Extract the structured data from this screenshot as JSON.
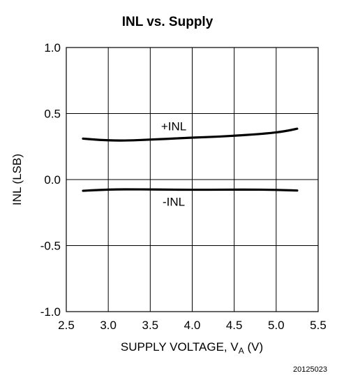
{
  "chart_data": {
    "type": "line",
    "title": "INL vs. Supply",
    "xlabel_main": "SUPPLY VOLTAGE, V",
    "xlabel_sub": "A",
    "xlabel_tail": " (V)",
    "ylabel": "INL (LSB)",
    "xlim": [
      2.5,
      5.5
    ],
    "ylim": [
      -1.0,
      1.0
    ],
    "x_ticks": [
      "2.5",
      "3.0",
      "3.5",
      "4.0",
      "4.5",
      "5.0",
      "5.5"
    ],
    "y_ticks": [
      "1.0",
      "0.5",
      "0.0",
      "-0.5",
      "-1.0"
    ],
    "grid": true,
    "series": [
      {
        "name": "+INL",
        "x": [
          2.7,
          2.9,
          3.1,
          3.3,
          3.5,
          3.7,
          3.9,
          4.1,
          4.3,
          4.5,
          4.7,
          4.9,
          5.1,
          5.25
        ],
        "y": [
          0.31,
          0.3,
          0.295,
          0.297,
          0.303,
          0.308,
          0.315,
          0.32,
          0.325,
          0.332,
          0.34,
          0.35,
          0.365,
          0.385
        ]
      },
      {
        "name": "-INL",
        "x": [
          2.7,
          2.9,
          3.1,
          3.3,
          3.5,
          3.7,
          3.9,
          4.1,
          4.3,
          4.5,
          4.7,
          4.9,
          5.1,
          5.25
        ],
        "y": [
          -0.085,
          -0.078,
          -0.074,
          -0.074,
          -0.075,
          -0.076,
          -0.077,
          -0.077,
          -0.077,
          -0.076,
          -0.076,
          -0.077,
          -0.08,
          -0.083
        ]
      }
    ]
  },
  "figure_id": "20125023"
}
